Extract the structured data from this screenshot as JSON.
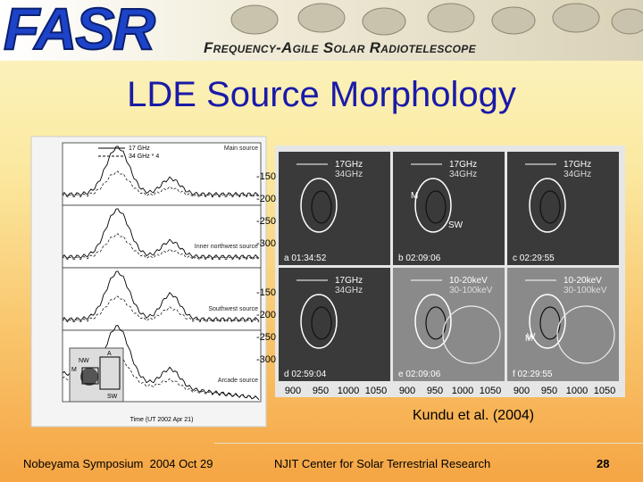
{
  "header": {
    "logo": "FASR",
    "subtitle": "Frequency-Agile Solar Radiotelescope"
  },
  "title": "LDE Source Morphology",
  "left_figure": {
    "legend": [
      "17 GHz",
      "34 GHz * 4"
    ],
    "sources": [
      "Main source",
      "Inner northwest source",
      "Southwest source",
      "Arcade source"
    ],
    "inset_labels": [
      "NW",
      "A",
      "M",
      "SW"
    ],
    "x_label": "Time (UT 2002 Apr 21)"
  },
  "right_figure": {
    "panels": [
      {
        "top": "17GHz",
        "bottom": "34GHz",
        "label": "a 01:34:52",
        "marks": []
      },
      {
        "top": "17GHz",
        "bottom": "34GHz",
        "label": "b 02:09:06",
        "marks": [
          "M",
          "SW"
        ]
      },
      {
        "top": "17GHz",
        "bottom": "34GHz",
        "label": "c 02:29:55",
        "marks": []
      },
      {
        "top": "17GHz",
        "bottom": "34GHz",
        "label": "d 02:59:04",
        "marks": []
      },
      {
        "top": "10-20keV",
        "bottom": "30-100keV",
        "label": "e 02:09:06",
        "marks": []
      },
      {
        "top": "10-20keV",
        "bottom": "30-100keV",
        "label": "f 02:29:55",
        "marks": [
          "M",
          "W"
        ]
      }
    ],
    "y_ticks": [
      "-150",
      "-200",
      "-250",
      "-300"
    ],
    "x_ticks": [
      "900",
      "950",
      "1000",
      "1050"
    ]
  },
  "caption": "Kundu et al. (2004)",
  "footer": {
    "left": "Nobeyama Symposium  2004 Oct 29",
    "center": "NJIT Center for Solar Terrestrial Research",
    "page": "28"
  }
}
